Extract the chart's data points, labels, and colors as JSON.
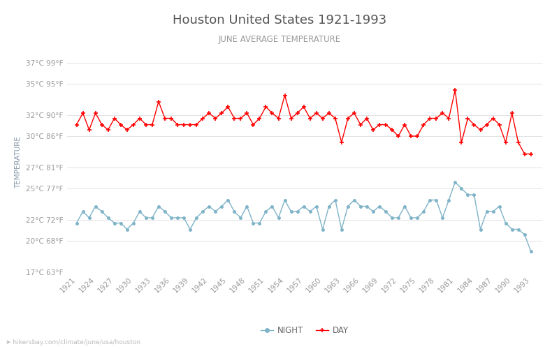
{
  "title": "Houston United States 1921-1993",
  "subtitle": "JUNE AVERAGE TEMPERATURE",
  "ylabel": "TEMPERATURE",
  "watermark": "➤ hikersbay.com/climate/june/usa/houston",
  "legend_night": "NIGHT",
  "legend_day": "DAY",
  "years": [
    1921,
    1922,
    1923,
    1924,
    1925,
    1926,
    1927,
    1928,
    1929,
    1930,
    1931,
    1932,
    1933,
    1934,
    1935,
    1936,
    1937,
    1938,
    1939,
    1940,
    1941,
    1942,
    1943,
    1944,
    1945,
    1946,
    1947,
    1948,
    1949,
    1950,
    1951,
    1952,
    1953,
    1954,
    1955,
    1956,
    1957,
    1958,
    1959,
    1960,
    1961,
    1962,
    1963,
    1964,
    1965,
    1966,
    1967,
    1968,
    1969,
    1970,
    1971,
    1972,
    1973,
    1974,
    1975,
    1976,
    1977,
    1978,
    1979,
    1980,
    1981,
    1982,
    1983,
    1984,
    1985,
    1986,
    1987,
    1988,
    1989,
    1990,
    1991,
    1992,
    1993
  ],
  "day_temps": [
    31.1,
    32.2,
    30.6,
    32.2,
    31.1,
    30.6,
    31.7,
    31.1,
    30.6,
    31.1,
    31.7,
    31.1,
    31.1,
    33.3,
    31.7,
    31.7,
    31.1,
    31.1,
    31.1,
    31.1,
    31.7,
    32.2,
    31.7,
    32.2,
    32.8,
    31.7,
    31.7,
    32.2,
    31.1,
    31.7,
    32.8,
    32.2,
    31.7,
    33.9,
    31.7,
    32.2,
    32.8,
    31.7,
    32.2,
    31.7,
    32.2,
    31.7,
    29.4,
    31.7,
    32.2,
    31.1,
    31.7,
    30.6,
    31.1,
    31.1,
    30.6,
    30.0,
    31.1,
    30.0,
    30.0,
    31.1,
    31.7,
    31.7,
    32.2,
    31.7,
    34.4,
    29.4,
    31.7,
    31.1,
    30.6,
    31.1,
    31.7,
    31.1,
    29.4,
    32.2,
    29.4,
    28.3,
    28.3
  ],
  "night_temps": [
    21.7,
    22.8,
    22.2,
    23.3,
    22.8,
    22.2,
    21.7,
    21.7,
    21.1,
    21.7,
    22.8,
    22.2,
    22.2,
    23.3,
    22.8,
    22.2,
    22.2,
    22.2,
    21.1,
    22.2,
    22.8,
    23.3,
    22.8,
    23.3,
    23.9,
    22.8,
    22.2,
    23.3,
    21.7,
    21.7,
    22.8,
    23.3,
    22.2,
    23.9,
    22.8,
    22.8,
    23.3,
    22.8,
    23.3,
    21.1,
    23.3,
    23.9,
    21.1,
    23.3,
    23.9,
    23.3,
    23.3,
    22.8,
    23.3,
    22.8,
    22.2,
    22.2,
    23.3,
    22.2,
    22.2,
    22.8,
    23.9,
    23.9,
    22.2,
    23.9,
    25.6,
    25.0,
    24.4,
    24.4,
    21.1,
    22.8,
    22.8,
    23.3,
    21.7,
    21.1,
    21.1,
    20.6,
    19.0
  ],
  "day_color": "#ff0000",
  "night_color": "#7fb3c8",
  "title_color": "#555555",
  "subtitle_color": "#999999",
  "ylabel_color": "#8899aa",
  "tick_color": "#999999",
  "grid_color": "#dddddd",
  "watermark_color": "#bbbbbb",
  "background_color": "#ffffff",
  "ylim_min": 17,
  "ylim_max": 38,
  "yticks_c": [
    17,
    20,
    22,
    25,
    27,
    30,
    32,
    35,
    37
  ],
  "yticks_f": [
    63,
    68,
    72,
    77,
    81,
    86,
    90,
    95,
    99
  ],
  "figsize": [
    8,
    5
  ],
  "dpi": 100
}
